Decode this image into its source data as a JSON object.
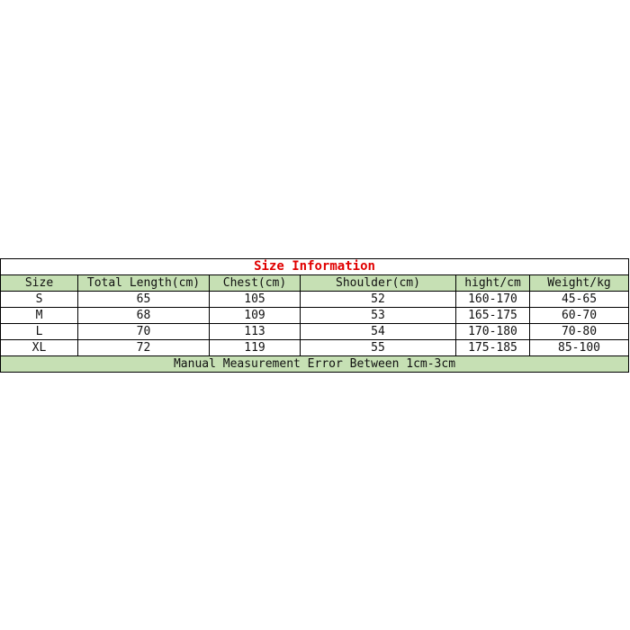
{
  "title": "Size Information",
  "columns": [
    "Size",
    "Total Length(cm)",
    "Chest(cm)",
    "Shoulder(cm)",
    "hight/cm",
    "Weight/kg"
  ],
  "rows": [
    [
      "S",
      "65",
      "105",
      "52",
      "160-170",
      "45-65"
    ],
    [
      "M",
      "68",
      "109",
      "53",
      "165-175",
      "60-70"
    ],
    [
      "L",
      "70",
      "113",
      "54",
      "170-180",
      "70-80"
    ],
    [
      "XL",
      "72",
      "119",
      "55",
      "175-185",
      "85-100"
    ]
  ],
  "footer": "Manual Measurement Error Between 1cm-3cm",
  "colors": {
    "header_bg": "#c6e0b4",
    "title": "#e00000"
  }
}
